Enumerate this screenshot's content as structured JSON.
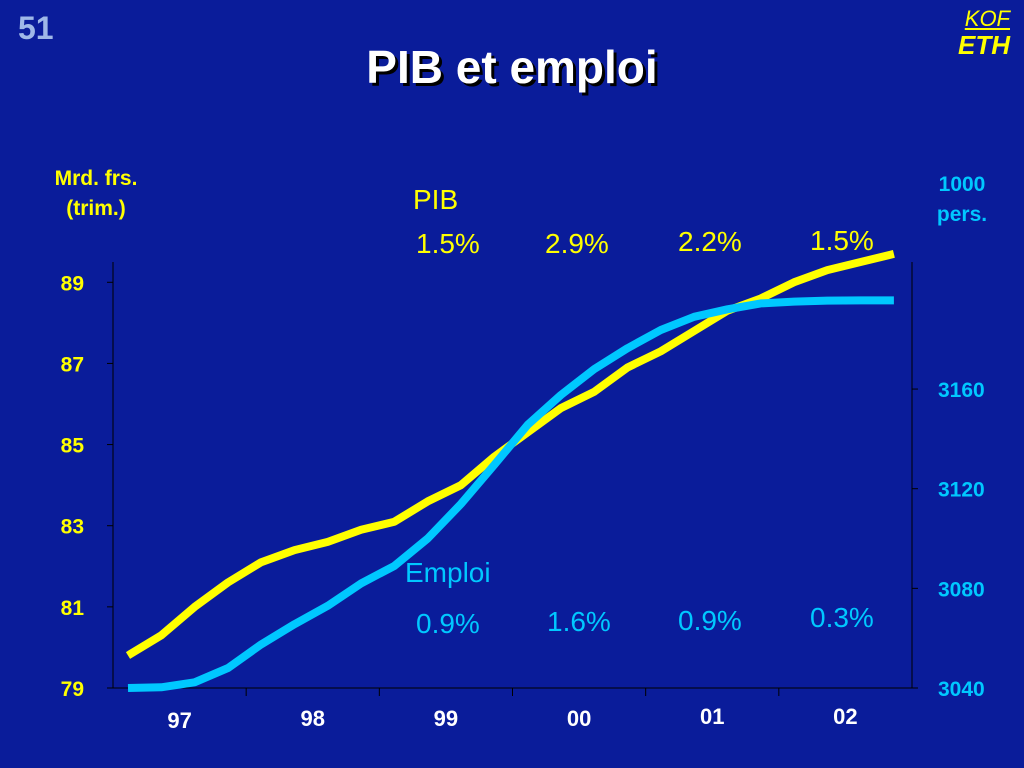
{
  "slide_number": "51",
  "logo": {
    "top": "KOF",
    "bottom": "ETH"
  },
  "title": "PIB et  emploi",
  "left_axis_unit": [
    "Mrd. frs.",
    "(trim.)"
  ],
  "right_axis_unit": [
    "1000",
    "pers."
  ],
  "pib_series_label": "PIB",
  "emploi_series_label": "Emploi",
  "pib_growth": [
    {
      "label": "1.5%"
    },
    {
      "label": "2.9%"
    },
    {
      "label": "2.2%"
    },
    {
      "label": "1.5%"
    }
  ],
  "emploi_growth": [
    {
      "label": "0.9%"
    },
    {
      "label": "1.6%"
    },
    {
      "label": "0.9%"
    },
    {
      "label": "0.3%"
    }
  ],
  "colors": {
    "background": "#0a1c9a",
    "pib": "#ffff00",
    "emploi": "#00c8ff",
    "title": "#ffffff"
  },
  "chart_data": {
    "type": "line",
    "title": "PIB et  emploi",
    "x": [
      "1997Q1",
      "1997Q2",
      "1997Q3",
      "1997Q4",
      "1998Q1",
      "1998Q2",
      "1998Q3",
      "1998Q4",
      "1999Q1",
      "1999Q2",
      "1999Q3",
      "1999Q4",
      "2000Q1",
      "2000Q2",
      "2000Q3",
      "2000Q4",
      "2001Q1",
      "2001Q2",
      "2001Q3",
      "2001Q4",
      "2002Q1",
      "2002Q2",
      "2002Q3",
      "2002Q4"
    ],
    "x_ticks": [
      "97",
      "98",
      "99",
      "00",
      "01",
      "02"
    ],
    "left_axis": {
      "ticks": [
        79,
        81,
        83,
        85,
        87,
        89
      ],
      "ylim": [
        79,
        89.5
      ]
    },
    "right_axis": {
      "ticks": [
        3040,
        3080,
        3120,
        3160
      ],
      "ylim": [
        3040,
        3211
      ]
    },
    "grid": false,
    "series": [
      {
        "name": "PIB",
        "axis": "left",
        "values": [
          79.8,
          80.3,
          81.0,
          81.6,
          82.1,
          82.4,
          82.6,
          82.9,
          83.1,
          83.6,
          84.0,
          84.7,
          85.3,
          85.9,
          86.3,
          86.9,
          87.3,
          87.8,
          88.3,
          88.6,
          89.0,
          89.3,
          89.5,
          89.7
        ]
      },
      {
        "name": "Emploi",
        "axis": "right",
        "values": [
          3040.0,
          3040.3,
          3042.3,
          3048.0,
          3057.5,
          3065.6,
          3073.0,
          3082.0,
          3089.0,
          3100.0,
          3113.9,
          3129.6,
          3145.6,
          3157.6,
          3168.0,
          3176.4,
          3183.7,
          3189.0,
          3192.0,
          3194.4,
          3195.1,
          3195.5,
          3195.6,
          3195.6
        ]
      }
    ]
  }
}
